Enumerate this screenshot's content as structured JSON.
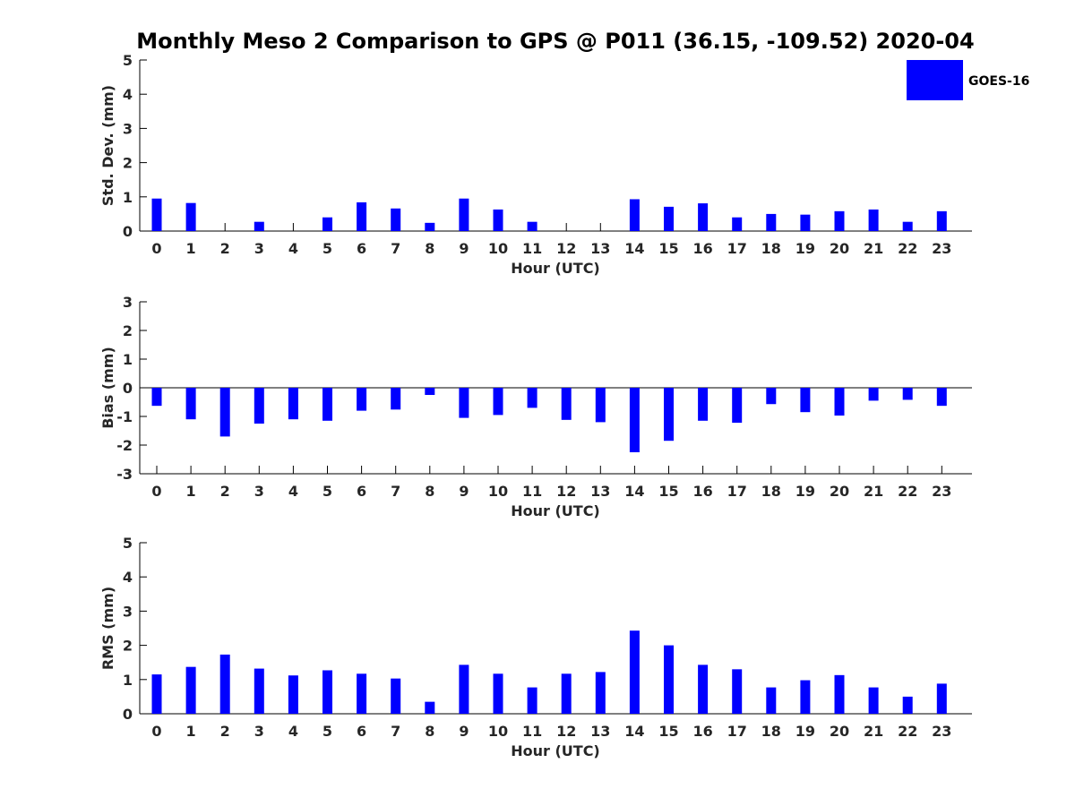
{
  "title": "Monthly Meso 2 Comparison to GPS @ P011 (36.15, -109.52) 2020-04",
  "legend": {
    "label": "GOES-16",
    "color": "#0000ff"
  },
  "chart_data": [
    {
      "type": "bar",
      "ylabel": "Std. Dev. (mm)",
      "xlabel": "Hour (UTC)",
      "ylim": [
        0,
        5
      ],
      "yticks": [
        0,
        1,
        2,
        3,
        4,
        5
      ],
      "categories": [
        "0",
        "1",
        "2",
        "3",
        "4",
        "5",
        "6",
        "7",
        "8",
        "9",
        "10",
        "11",
        "12",
        "13",
        "14",
        "15",
        "16",
        "17",
        "18",
        "19",
        "20",
        "21",
        "22",
        "23"
      ],
      "series": [
        {
          "name": "GOES-16",
          "values": [
            0.95,
            0.82,
            0,
            0.27,
            0,
            0.4,
            0.84,
            0.66,
            0.24,
            0.95,
            0.63,
            0.27,
            0,
            0,
            0.93,
            0.71,
            0.81,
            0.4,
            0.5,
            0.48,
            0.58,
            0.63,
            0.27,
            0.58
          ]
        }
      ]
    },
    {
      "type": "bar",
      "ylabel": "Bias (mm)",
      "xlabel": "Hour (UTC)",
      "ylim": [
        -3,
        3
      ],
      "yticks": [
        -3,
        -2,
        -1,
        0,
        1,
        2,
        3
      ],
      "categories": [
        "0",
        "1",
        "2",
        "3",
        "4",
        "5",
        "6",
        "7",
        "8",
        "9",
        "10",
        "11",
        "12",
        "13",
        "14",
        "15",
        "16",
        "17",
        "18",
        "19",
        "20",
        "21",
        "22",
        "23"
      ],
      "series": [
        {
          "name": "GOES-16",
          "values": [
            -0.63,
            -1.1,
            -1.7,
            -1.25,
            -1.1,
            -1.15,
            -0.8,
            -0.76,
            -0.25,
            -1.05,
            -0.95,
            -0.7,
            -1.12,
            -1.2,
            -2.25,
            -1.85,
            -1.15,
            -1.22,
            -0.57,
            -0.85,
            -0.97,
            -0.45,
            -0.42,
            -0.63
          ]
        }
      ]
    },
    {
      "type": "bar",
      "ylabel": "RMS (mm)",
      "xlabel": "Hour (UTC)",
      "ylim": [
        0,
        5
      ],
      "yticks": [
        0,
        1,
        2,
        3,
        4,
        5
      ],
      "categories": [
        "0",
        "1",
        "2",
        "3",
        "4",
        "5",
        "6",
        "7",
        "8",
        "9",
        "10",
        "11",
        "12",
        "13",
        "14",
        "15",
        "16",
        "17",
        "18",
        "19",
        "20",
        "21",
        "22",
        "23"
      ],
      "series": [
        {
          "name": "GOES-16",
          "values": [
            1.15,
            1.37,
            1.73,
            1.32,
            1.12,
            1.27,
            1.17,
            1.03,
            0.35,
            1.43,
            1.17,
            0.77,
            1.17,
            1.22,
            2.43,
            2.0,
            1.43,
            1.3,
            0.77,
            0.98,
            1.13,
            0.77,
            0.5,
            0.88
          ]
        }
      ]
    }
  ]
}
